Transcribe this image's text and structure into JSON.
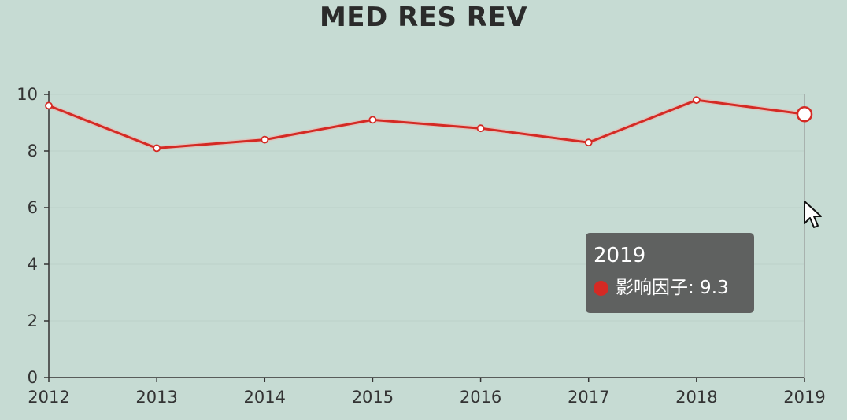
{
  "chart_data": {
    "type": "line",
    "title": "MED RES REV",
    "xlabel": "",
    "ylabel": "",
    "categories": [
      "2012",
      "2013",
      "2014",
      "2015",
      "2016",
      "2017",
      "2018",
      "2019"
    ],
    "series": [
      {
        "name": "影响因子",
        "values": [
          9.6,
          8.1,
          8.4,
          9.1,
          8.8,
          8.3,
          9.8,
          9.3
        ],
        "color": "#d42a24"
      }
    ],
    "ylim": [
      0,
      10
    ],
    "yticks": [
      "0",
      "2",
      "4",
      "6",
      "8",
      "10"
    ],
    "grid": true,
    "legend": "none",
    "highlighted_index": 7
  },
  "tooltip": {
    "title": "2019",
    "series_label": "影响因子: 9.3",
    "dot_color": "#d42a24"
  },
  "cursor": {
    "icon": "mouse-pointer-icon"
  }
}
